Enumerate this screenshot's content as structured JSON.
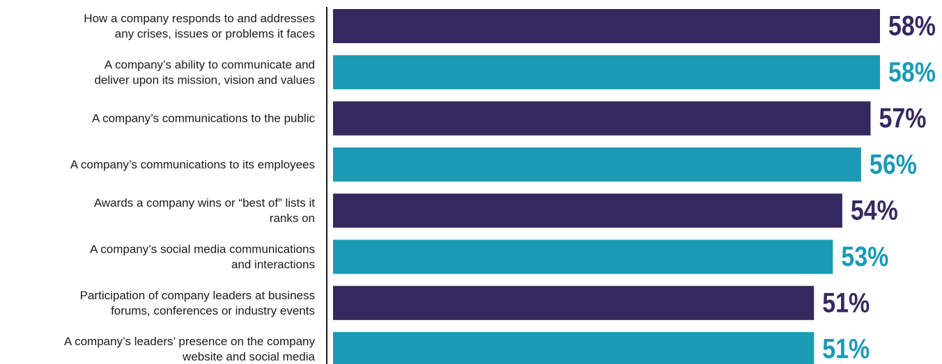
{
  "chart_data": {
    "type": "bar",
    "orientation": "horizontal",
    "categories": [
      [
        "How a company responds to and addresses",
        "any crises, issues or problems it faces"
      ],
      [
        "A company’s ability to communicate and",
        "deliver upon its mission, vision and values"
      ],
      [
        "A company’s communications to the public"
      ],
      [
        "A company’s communications to its employees"
      ],
      [
        "Awards a company wins or “best of” lists it",
        "ranks on"
      ],
      [
        "A company’s social media communications",
        "and interactions"
      ],
      [
        "Participation of company leaders at business",
        "forums, conferences or industry events"
      ],
      [
        "A company’s leaders’ presence on the company",
        "website and social media"
      ]
    ],
    "values": [
      58,
      58,
      57,
      56,
      54,
      53,
      51,
      51
    ],
    "value_labels": [
      "58%",
      "58%",
      "57%",
      "56%",
      "54%",
      "53%",
      "51%",
      "51%"
    ],
    "bar_colors": [
      "#35295f",
      "#1a9ab5",
      "#35295f",
      "#1a9ab5",
      "#35295f",
      "#1a9ab5",
      "#35295f",
      "#1a9ab5"
    ],
    "axis_line_color": "#1a1a1a",
    "xlim": [
      0,
      58
    ],
    "grid": false,
    "legend": "none",
    "title": "",
    "xlabel": "",
    "ylabel": ""
  }
}
